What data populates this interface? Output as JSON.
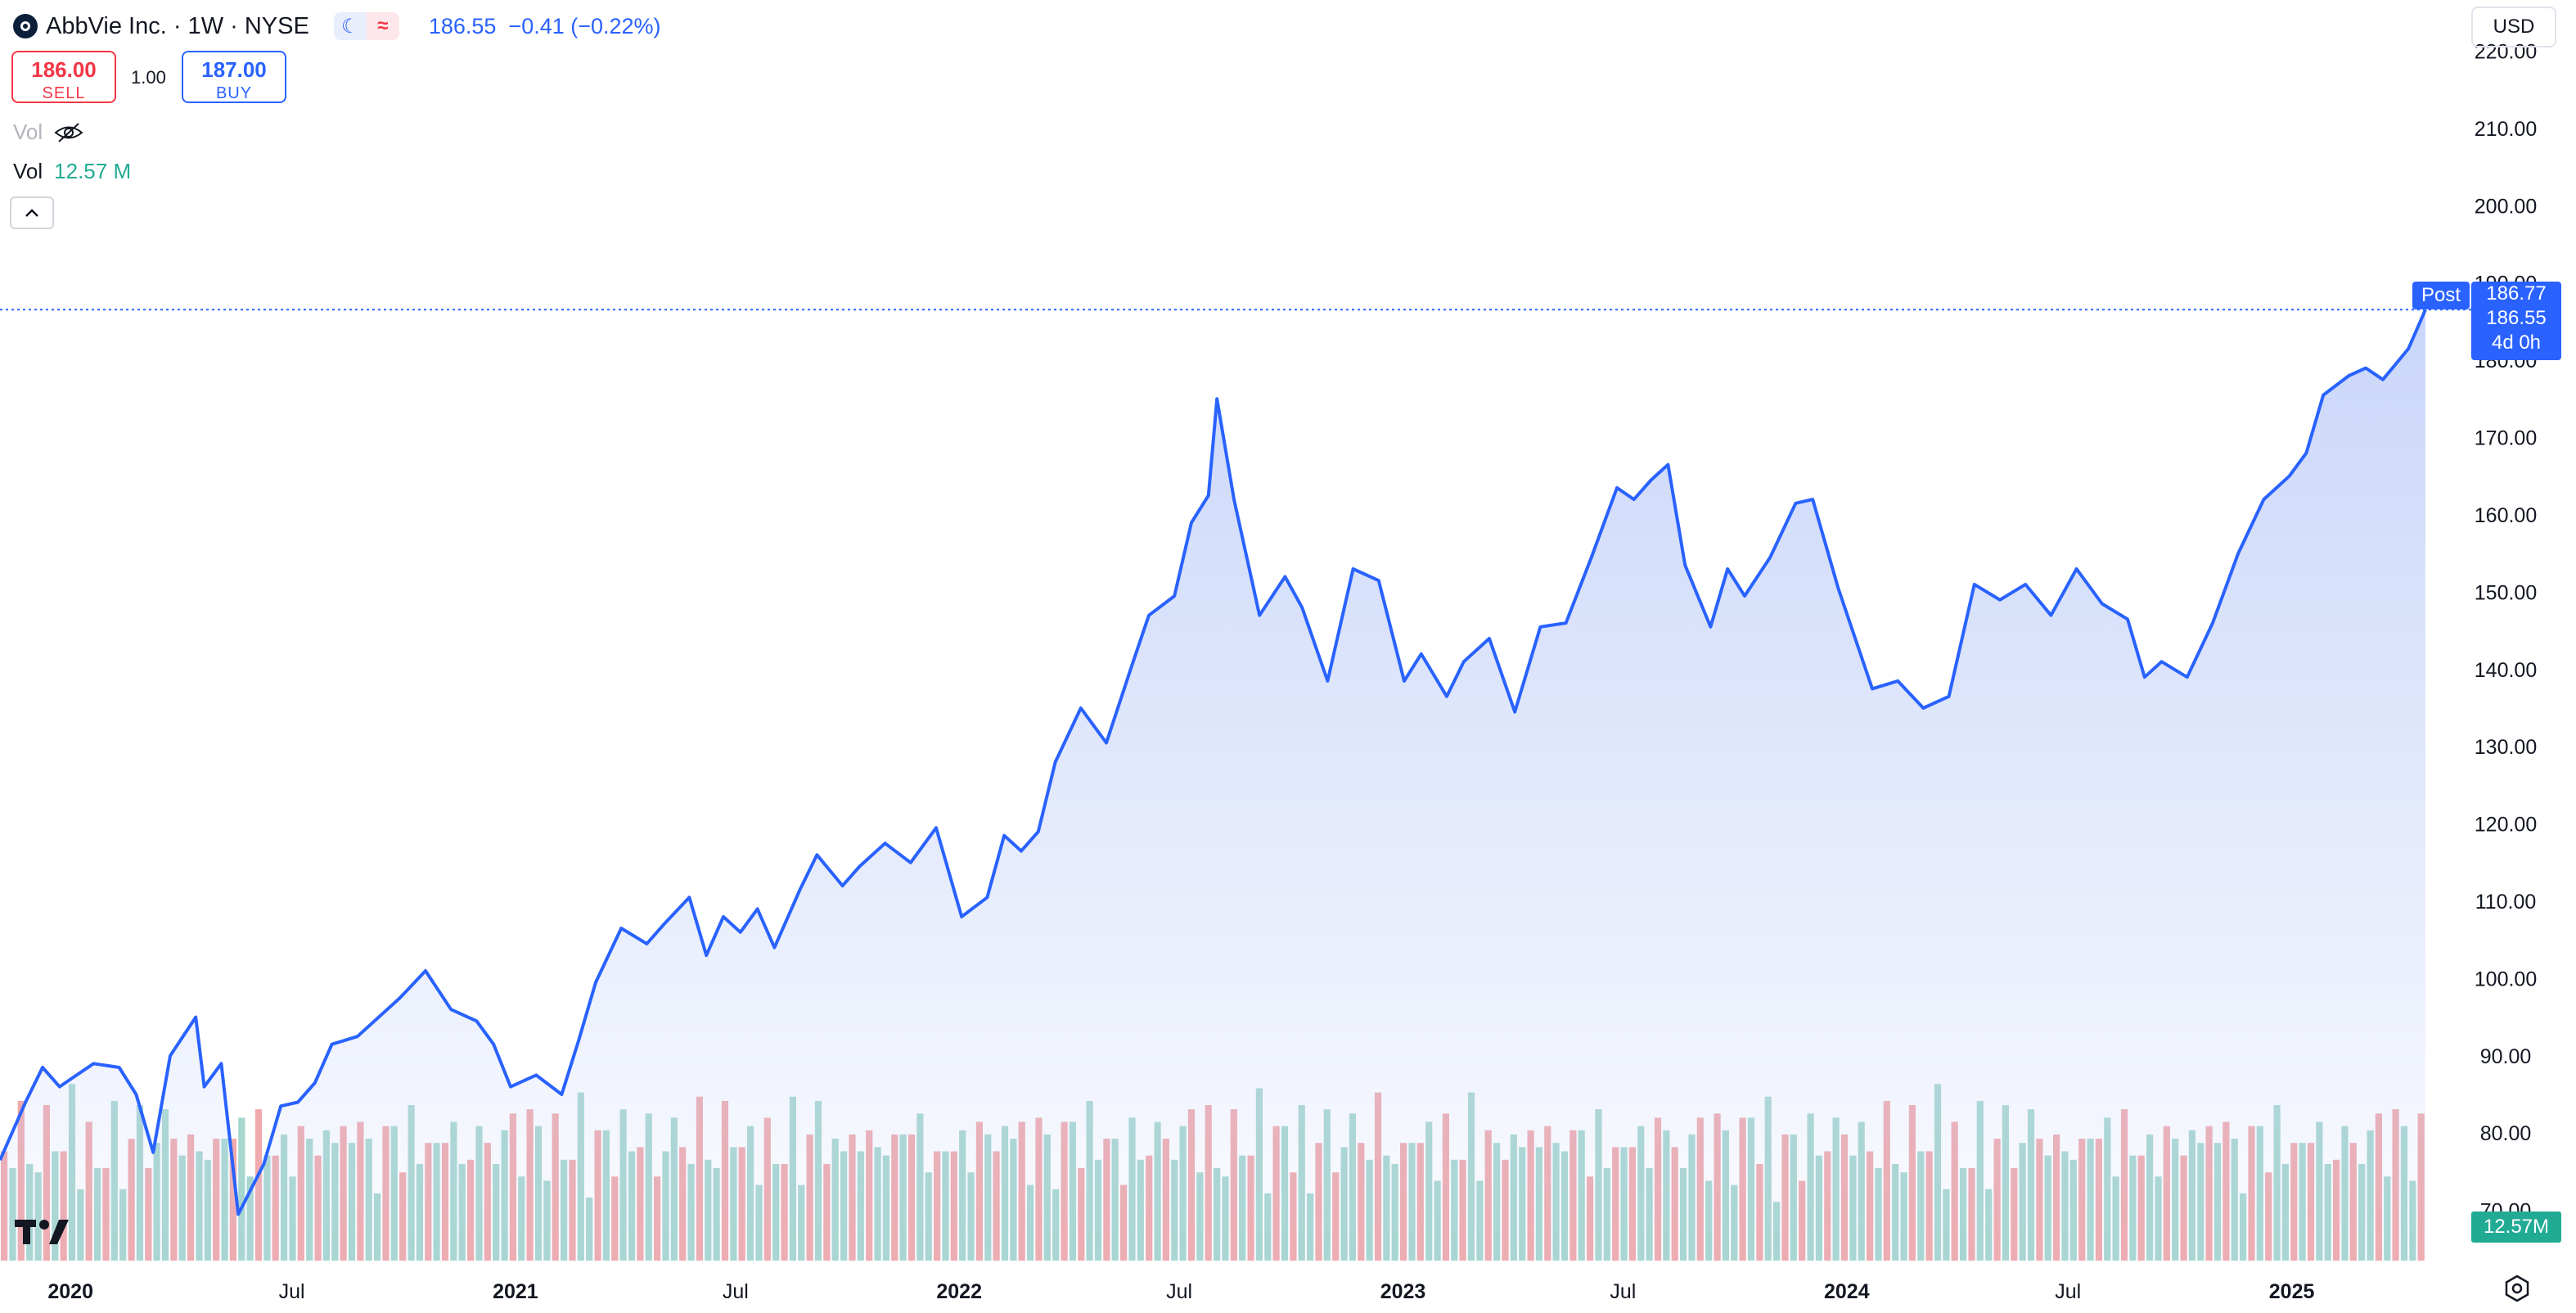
{
  "header": {
    "title": "AbbVie Inc. · 1W · NYSE",
    "last_price": "186.55",
    "change": "−0.41 (−0.22%)"
  },
  "trade": {
    "sell_price": "186.00",
    "sell_label": "SELL",
    "spread": "1.00",
    "buy_price": "187.00",
    "buy_label": "BUY"
  },
  "legend": {
    "vol_hidden_label": "Vol",
    "vol_label": "Vol",
    "vol_value": "12.57 M"
  },
  "currency": "USD",
  "badges": {
    "post_label": "Post",
    "post_price": "186.77",
    "last_price": "186.55",
    "countdown": "4d 0h",
    "volume": "12.57M"
  },
  "colors": {
    "line": "#2962ff",
    "area_top": "#c7d4f9",
    "vol_up": "#a6d6ce",
    "vol_down": "#f0a9ac"
  },
  "chart_data": {
    "type": "area",
    "interval": "1W",
    "x_start": "2019-11-04",
    "x_end": "2025-04-21",
    "x_tick_labels": [
      "2020",
      "Jul",
      "2021",
      "Jul",
      "2022",
      "Jul",
      "2023",
      "Jul",
      "2024",
      "Jul",
      "2025"
    ],
    "x_tick_dates": [
      "2020-01-01",
      "2020-07-01",
      "2021-01-01",
      "2021-07-01",
      "2022-01-01",
      "2022-07-01",
      "2023-01-01",
      "2023-07-01",
      "2024-01-01",
      "2024-07-01",
      "2025-01-01"
    ],
    "y_ticks": [
      "220.00",
      "210.00",
      "200.00",
      "190.00",
      "180.00",
      "170.00",
      "160.00",
      "150.00",
      "140.00",
      "130.00",
      "120.00",
      "110.00",
      "100.00",
      "90.00",
      "80.00",
      "70.00"
    ],
    "y_range": [
      63.5,
      224.5
    ],
    "last_price": 186.55,
    "series": [
      {
        "type": "line",
        "points": [
          [
            "2019-11-04",
            76.5
          ],
          [
            "2019-11-25",
            84
          ],
          [
            "2019-12-09",
            88.5
          ],
          [
            "2019-12-23",
            86
          ],
          [
            "2020-01-06",
            87.5
          ],
          [
            "2020-01-20",
            89
          ],
          [
            "2020-02-10",
            88.5
          ],
          [
            "2020-02-24",
            85
          ],
          [
            "2020-03-09",
            77.5
          ],
          [
            "2020-03-23",
            90
          ],
          [
            "2020-04-13",
            95
          ],
          [
            "2020-04-20",
            86
          ],
          [
            "2020-05-04",
            89
          ],
          [
            "2020-05-18",
            69.5
          ],
          [
            "2020-06-08",
            76
          ],
          [
            "2020-06-22",
            83.5
          ],
          [
            "2020-07-06",
            84
          ],
          [
            "2020-07-20",
            86.5
          ],
          [
            "2020-08-03",
            91.5
          ],
          [
            "2020-08-24",
            92.5
          ],
          [
            "2020-09-07",
            94.5
          ],
          [
            "2020-09-28",
            97.5
          ],
          [
            "2020-10-19",
            101
          ],
          [
            "2020-11-09",
            96
          ],
          [
            "2020-11-30",
            94.5
          ],
          [
            "2020-12-14",
            91.5
          ],
          [
            "2020-12-28",
            86
          ],
          [
            "2021-01-18",
            87.5
          ],
          [
            "2021-02-08",
            85
          ],
          [
            "2021-02-22",
            92
          ],
          [
            "2021-03-08",
            99.5
          ],
          [
            "2021-03-29",
            106.5
          ],
          [
            "2021-04-19",
            104.5
          ],
          [
            "2021-05-03",
            107
          ],
          [
            "2021-05-24",
            110.5
          ],
          [
            "2021-06-07",
            103
          ],
          [
            "2021-06-21",
            108
          ],
          [
            "2021-07-05",
            106
          ],
          [
            "2021-07-19",
            109
          ],
          [
            "2021-08-02",
            104
          ],
          [
            "2021-08-23",
            111.5
          ],
          [
            "2021-09-06",
            116
          ],
          [
            "2021-09-27",
            112
          ],
          [
            "2021-10-11",
            114.5
          ],
          [
            "2021-11-01",
            117.5
          ],
          [
            "2021-11-22",
            115
          ],
          [
            "2021-12-13",
            119.5
          ],
          [
            "2022-01-03",
            108
          ],
          [
            "2022-01-24",
            110.5
          ],
          [
            "2022-02-07",
            118.5
          ],
          [
            "2022-02-21",
            116.5
          ],
          [
            "2022-03-07",
            119
          ],
          [
            "2022-03-21",
            128
          ],
          [
            "2022-04-11",
            135
          ],
          [
            "2022-05-02",
            130.5
          ],
          [
            "2022-05-23",
            140.5
          ],
          [
            "2022-06-06",
            147
          ],
          [
            "2022-06-27",
            149.5
          ],
          [
            "2022-07-11",
            159
          ],
          [
            "2022-07-25",
            162.5
          ],
          [
            "2022-08-01",
            175
          ],
          [
            "2022-08-15",
            162
          ],
          [
            "2022-09-05",
            147
          ],
          [
            "2022-09-26",
            152
          ],
          [
            "2022-10-10",
            148
          ],
          [
            "2022-10-31",
            138.5
          ],
          [
            "2022-11-21",
            153
          ],
          [
            "2022-12-12",
            151.5
          ],
          [
            "2023-01-02",
            138.5
          ],
          [
            "2023-01-16",
            142
          ],
          [
            "2023-02-06",
            136.5
          ],
          [
            "2023-02-20",
            141
          ],
          [
            "2023-03-13",
            144
          ],
          [
            "2023-04-03",
            134.5
          ],
          [
            "2023-04-24",
            145.5
          ],
          [
            "2023-05-15",
            146
          ],
          [
            "2023-06-05",
            154.5
          ],
          [
            "2023-06-26",
            163.5
          ],
          [
            "2023-07-10",
            162
          ],
          [
            "2023-07-24",
            164.5
          ],
          [
            "2023-08-07",
            166.5
          ],
          [
            "2023-08-21",
            153.5
          ],
          [
            "2023-09-11",
            145.5
          ],
          [
            "2023-09-25",
            153
          ],
          [
            "2023-10-09",
            149.5
          ],
          [
            "2023-10-30",
            154.5
          ],
          [
            "2023-11-20",
            161.5
          ],
          [
            "2023-12-04",
            162
          ],
          [
            "2023-12-25",
            150.5
          ],
          [
            "2024-01-22",
            137.5
          ],
          [
            "2024-02-12",
            138.5
          ],
          [
            "2024-03-04",
            135
          ],
          [
            "2024-03-25",
            136.5
          ],
          [
            "2024-04-15",
            151
          ],
          [
            "2024-05-06",
            149
          ],
          [
            "2024-05-27",
            151
          ],
          [
            "2024-06-17",
            147
          ],
          [
            "2024-07-08",
            153
          ],
          [
            "2024-07-29",
            148.5
          ],
          [
            "2024-08-19",
            146.5
          ],
          [
            "2024-09-02",
            139
          ],
          [
            "2024-09-16",
            141
          ],
          [
            "2024-10-07",
            139
          ],
          [
            "2024-10-28",
            146
          ],
          [
            "2024-11-18",
            155
          ],
          [
            "2024-12-09",
            162
          ],
          [
            "2024-12-30",
            165
          ],
          [
            "2025-01-13",
            168
          ],
          [
            "2025-01-27",
            175.5
          ],
          [
            "2025-02-17",
            178
          ],
          [
            "2025-03-03",
            179
          ],
          [
            "2025-03-17",
            177.5
          ],
          [
            "2025-04-07",
            181.5
          ],
          [
            "2025-04-21",
            186.55
          ]
        ]
      }
    ],
    "volume": {
      "max_value": 18.5,
      "bars": []
    }
  }
}
